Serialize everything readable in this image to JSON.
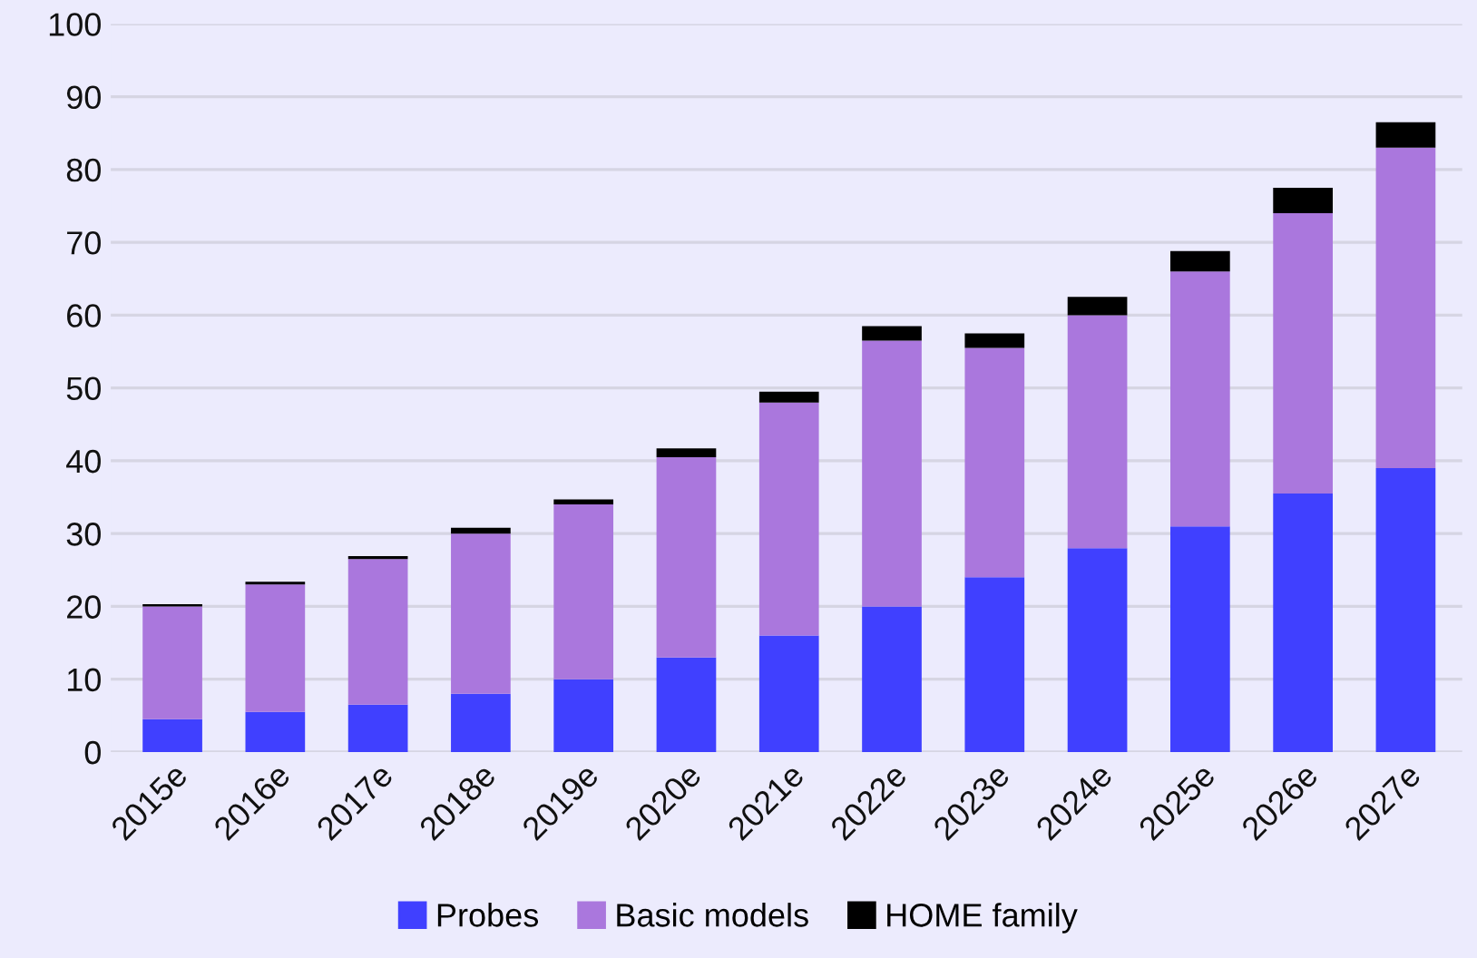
{
  "chart_data": {
    "type": "bar",
    "stacked": true,
    "categories": [
      "2015e",
      "2016e",
      "2017e",
      "2018e",
      "2019e",
      "2020e",
      "2021e",
      "2022e",
      "2023e",
      "2024e",
      "2025e",
      "2026e",
      "2027e"
    ],
    "series": [
      {
        "name": "Probes",
        "color": "#4040ff",
        "values": [
          4.5,
          5.5,
          6.5,
          8,
          10,
          13,
          16,
          20,
          24,
          28,
          31,
          35.5,
          39
        ]
      },
      {
        "name": "Basic models",
        "color": "#aa77dd",
        "values": [
          15.5,
          17.5,
          20,
          22,
          24,
          27.5,
          32,
          36.5,
          31.5,
          32,
          35,
          38.5,
          44
        ]
      },
      {
        "name": "HOME family",
        "color": "#000000",
        "values": [
          0.3,
          0.4,
          0.4,
          0.8,
          0.7,
          1.2,
          1.5,
          2,
          2,
          2.5,
          2.8,
          3.5,
          3.5
        ]
      }
    ],
    "ylim": [
      0,
      100
    ],
    "yticks": [
      0,
      10,
      20,
      30,
      40,
      50,
      60,
      70,
      80,
      90,
      100
    ],
    "grid": "y",
    "legend": "bottom"
  }
}
